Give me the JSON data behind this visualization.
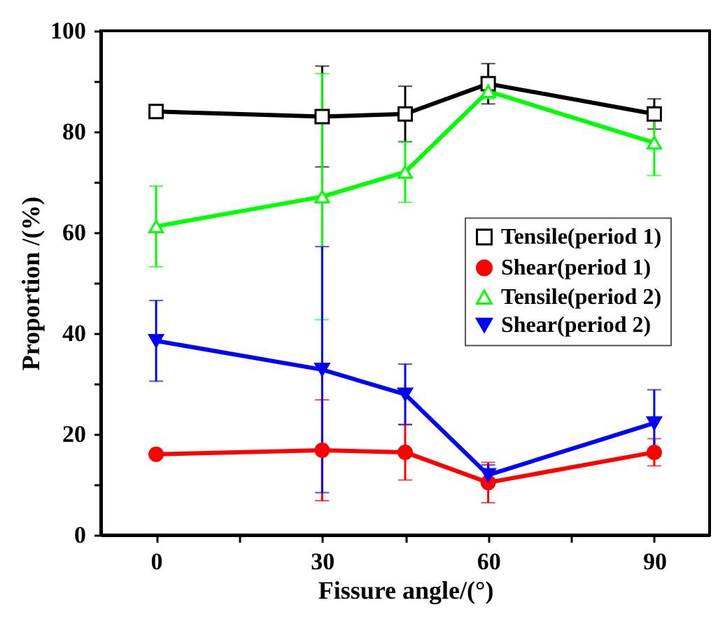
{
  "chart_data": {
    "type": "line",
    "xlabel": "Fissure angle/(°)",
    "ylabel": "Proportion /(%)",
    "x": [
      0,
      30,
      45,
      60,
      90
    ],
    "series": [
      {
        "name": "Tensile(period 1)",
        "color": "#000000",
        "marker": "square",
        "values": [
          84,
          83,
          83.5,
          89.5,
          83.5
        ],
        "errors": [
          null,
          10,
          5.5,
          4,
          3
        ]
      },
      {
        "name": "Shear(period 1)",
        "color": "#ff0000",
        "marker": "circle",
        "values": [
          16,
          16.8,
          16.4,
          10.4,
          16.4
        ],
        "errors": [
          null,
          10,
          5.5,
          4,
          2.7
        ]
      },
      {
        "name": "Tensile(period 2)",
        "color": "#00ff00",
        "marker": "triangle",
        "values": [
          61.2,
          67.1,
          72,
          88,
          77.8
        ],
        "errors": [
          8,
          24.4,
          6,
          1.5,
          6.5
        ]
      },
      {
        "name": "Shear(period 2)",
        "color": "#0000ff",
        "marker": "triangle-down",
        "values": [
          38.5,
          32.8,
          27.9,
          11.9,
          22.2
        ],
        "errors": [
          8,
          24.4,
          6,
          2,
          6.6
        ]
      }
    ],
    "xlim": [
      -10,
      100
    ],
    "ylim": [
      0,
      100
    ],
    "xticks": [
      0,
      {
        "value": 15,
        "label": null
      },
      30,
      {
        "value": 45,
        "label": null
      },
      60,
      {
        "value": 75,
        "label": null
      },
      90
    ],
    "yticks": [
      0,
      {
        "value": 10,
        "label": null
      },
      20,
      {
        "value": 30,
        "label": null
      },
      40,
      {
        "value": 50,
        "label": null
      },
      60,
      {
        "value": 70,
        "label": null
      },
      80,
      {
        "value": 90,
        "label": null
      },
      100
    ],
    "grid": false,
    "legend": "right"
  }
}
